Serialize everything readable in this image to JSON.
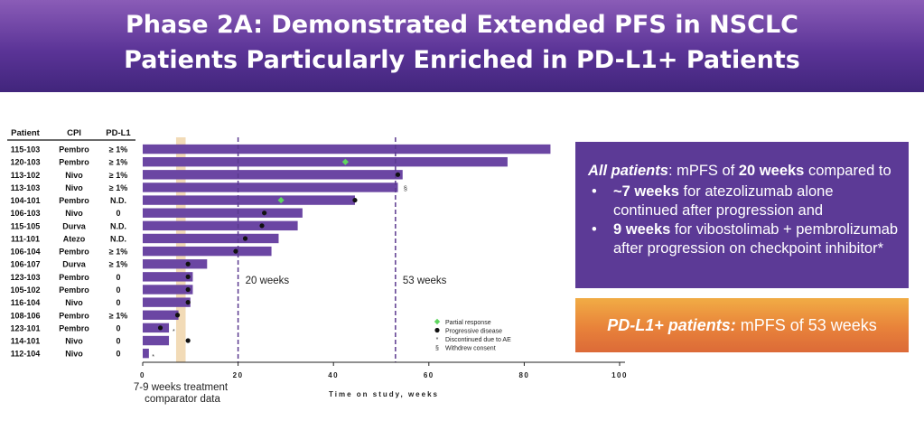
{
  "title": {
    "line1": "Phase 2A: Demonstrated Extended PFS in NSCLC",
    "line2": "Patients Particularly Enriched in PD-L1+ Patients"
  },
  "all_patients_box": {
    "lead_label": "All patients",
    "lead_sep": ": mPFS of ",
    "lead_value": "20 weeks",
    "lead_tail": " compared to",
    "bullet1_value": "~7 weeks",
    "bullet1_text": " for atezolizumab alone continued after progression and",
    "bullet2_value": "9 weeks",
    "bullet2_text": " for vibostolimab + pembrolizumab after progression on checkpoint inhibitor*"
  },
  "pdl1_box": {
    "label": "PD-L1+ patients:",
    "text": " mPFS of 53 weeks"
  },
  "chart_data": {
    "type": "bar",
    "orientation": "horizontal",
    "title": "",
    "xlabel": "Time on study, weeks",
    "xlim": [
      0,
      100
    ],
    "xticks": [
      0,
      20,
      40,
      60,
      80,
      100
    ],
    "table_headers": [
      "Patient",
      "CPI",
      "PD-L1"
    ],
    "rows": [
      {
        "patient": "115-103",
        "cpi": "Pembro",
        "pdl1": "≥ 1%",
        "value": 85.5
      },
      {
        "patient": "120-103",
        "cpi": "Pembro",
        "pdl1": "≥ 1%",
        "value": 76.5
      },
      {
        "patient": "113-102",
        "cpi": "Nivo",
        "pdl1": "≥ 1%",
        "value": 54.5
      },
      {
        "patient": "113-103",
        "cpi": "Nivo",
        "pdl1": "≥ 1%",
        "value": 53.5
      },
      {
        "patient": "104-101",
        "cpi": "Pembro",
        "pdl1": "N.D.",
        "value": 44.5
      },
      {
        "patient": "106-103",
        "cpi": "Nivo",
        "pdl1": "0",
        "value": 33.5
      },
      {
        "patient": "115-105",
        "cpi": "Durva",
        "pdl1": "N.D.",
        "value": 32.5
      },
      {
        "patient": "111-101",
        "cpi": "Atezo",
        "pdl1": "N.D.",
        "value": 28.5
      },
      {
        "patient": "106-104",
        "cpi": "Pembro",
        "pdl1": "≥ 1%",
        "value": 27
      },
      {
        "patient": "106-107",
        "cpi": "Durva",
        "pdl1": "≥ 1%",
        "value": 13.5
      },
      {
        "patient": "123-103",
        "cpi": "Pembro",
        "pdl1": "0",
        "value": 10.5
      },
      {
        "patient": "105-102",
        "cpi": "Pembro",
        "pdl1": "0",
        "value": 10.5
      },
      {
        "patient": "116-104",
        "cpi": "Nivo",
        "pdl1": "0",
        "value": 10
      },
      {
        "patient": "108-106",
        "cpi": "Pembro",
        "pdl1": "≥ 1%",
        "value": 7.5
      },
      {
        "patient": "123-101",
        "cpi": "Pembro",
        "pdl1": "0",
        "value": 5.5
      },
      {
        "patient": "114-101",
        "cpi": "Nivo",
        "pdl1": "0",
        "value": 5.5
      },
      {
        "patient": "112-104",
        "cpi": "Nivo",
        "pdl1": "0",
        "value": 1.3
      }
    ],
    "markers": [
      {
        "row": 1,
        "type": "partial_response",
        "x": 42.5
      },
      {
        "row": 2,
        "type": "progressive_disease",
        "x": 53.5
      },
      {
        "row": 3,
        "type": "withdrew_consent",
        "x": 54.5
      },
      {
        "row": 4,
        "type": "partial_response",
        "x": 29
      },
      {
        "row": 4,
        "type": "progressive_disease",
        "x": 44.5
      },
      {
        "row": 5,
        "type": "progressive_disease",
        "x": 25.5
      },
      {
        "row": 6,
        "type": "progressive_disease",
        "x": 25
      },
      {
        "row": 7,
        "type": "progressive_disease",
        "x": 21.5
      },
      {
        "row": 8,
        "type": "progressive_disease",
        "x": 19.5
      },
      {
        "row": 9,
        "type": "progressive_disease",
        "x": 9.5
      },
      {
        "row": 10,
        "type": "progressive_disease",
        "x": 9.5
      },
      {
        "row": 11,
        "type": "progressive_disease",
        "x": 9.5
      },
      {
        "row": 12,
        "type": "progressive_disease",
        "x": 9.5
      },
      {
        "row": 13,
        "type": "progressive_disease",
        "x": 7.3
      },
      {
        "row": 14,
        "type": "progressive_disease",
        "x": 3.7
      },
      {
        "row": 14,
        "type": "discontinued_ae",
        "x": 6.5
      },
      {
        "row": 15,
        "type": "progressive_disease",
        "x": 9.5
      },
      {
        "row": 16,
        "type": "discontinued_ae",
        "x": 2.2
      }
    ],
    "reference_lines": [
      {
        "x": 20,
        "label": "20 weeks"
      },
      {
        "x": 53,
        "label": "53 weeks"
      }
    ],
    "shaded_band": {
      "from": 7,
      "to": 9,
      "label_line1": "7-9 weeks treatment",
      "label_line2": "comparator data"
    },
    "legend": [
      {
        "type": "partial_response",
        "label": "Partial response",
        "symbol": "◆"
      },
      {
        "type": "progressive_disease",
        "label": "Progressive disease",
        "symbol": "●"
      },
      {
        "type": "discontinued_ae",
        "label": "Discontinued due to AE",
        "symbol": "*"
      },
      {
        "type": "withdrew_consent",
        "label": "Withdrew consent",
        "symbol": "§"
      }
    ],
    "colors": {
      "bar": "#6b46a3",
      "band": "#f2dbb7",
      "partial_response": "#5fd65f",
      "progressive_disease": "#111111",
      "ref_line": "#5b3a8f"
    }
  }
}
